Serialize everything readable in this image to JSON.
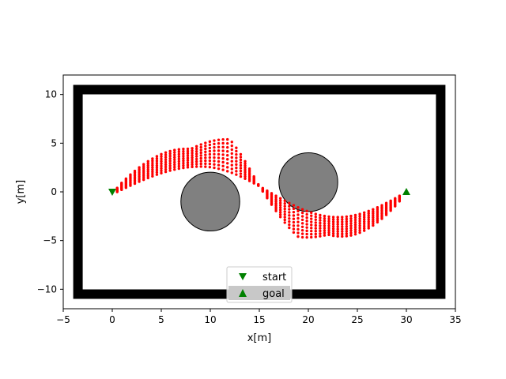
{
  "chart_data": {
    "type": "scatter",
    "title": "",
    "xlabel": "x[m]",
    "ylabel": "y[m]",
    "xlim": [
      -5,
      35
    ],
    "ylim": [
      -12,
      12
    ],
    "xticks": [
      -5,
      0,
      5,
      10,
      15,
      20,
      25,
      30,
      35
    ],
    "yticks": [
      -10,
      -5,
      0,
      5,
      10
    ],
    "grid": false,
    "legend_position": "lower-center",
    "colors": {
      "wall": "#000000",
      "obstacle_fill": "#808080",
      "obstacle_edge": "#000000",
      "trajectory": "#ff0000",
      "marker": "#008000",
      "legend_highlight": "#c8c8c8"
    },
    "walls": {
      "outer": [
        [
          -3.5,
          -10.5
        ],
        [
          33.5,
          -10.5
        ],
        [
          33.5,
          10.5
        ],
        [
          -3.5,
          10.5
        ]
      ]
    },
    "obstacles": [
      {
        "cx": 10,
        "cy": -1,
        "r": 3
      },
      {
        "cx": 20,
        "cy": 1,
        "r": 3
      }
    ],
    "trajectory_envelope": {
      "x_start": 0.5,
      "x_end": 29.5,
      "upper_peak": {
        "x": 7.5,
        "y": 5.8
      },
      "lower_peak": {
        "x": 23,
        "y": -5.8
      },
      "spine_peak": 2.6
    },
    "series": [
      {
        "name": "start",
        "marker": "triangle-down",
        "x": [
          0
        ],
        "y": [
          0
        ]
      },
      {
        "name": "goal",
        "marker": "triangle-up",
        "x": [
          30
        ],
        "y": [
          0
        ]
      }
    ]
  }
}
